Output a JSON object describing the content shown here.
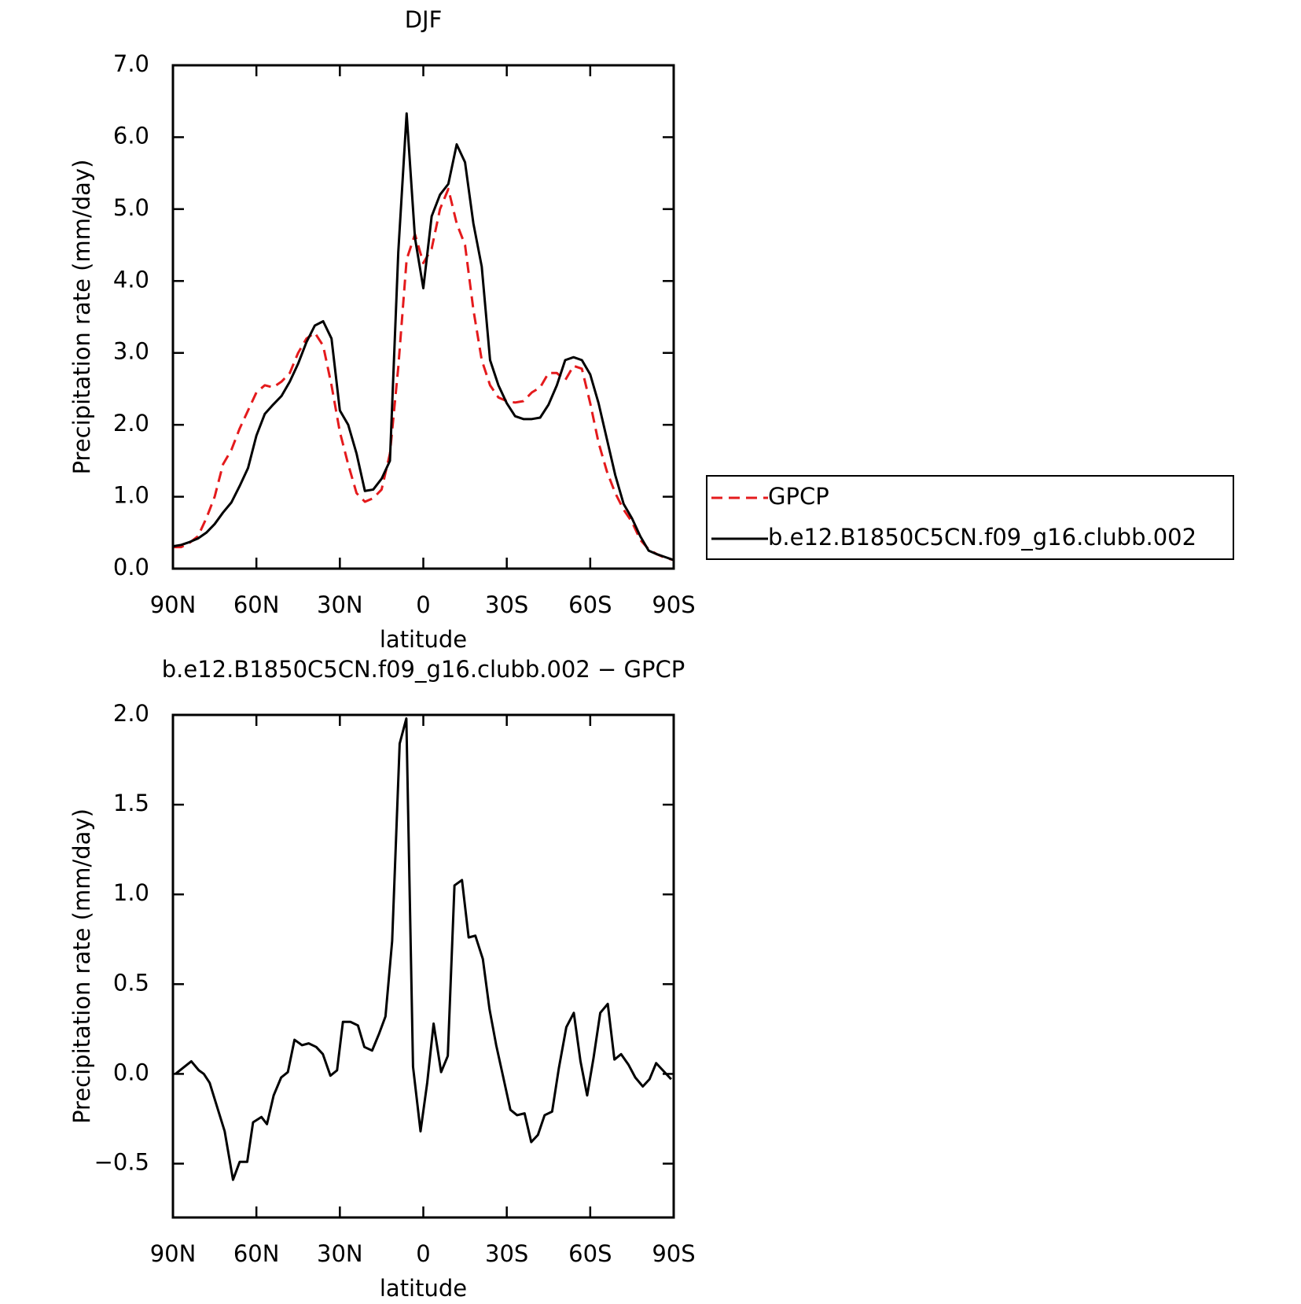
{
  "chart_data": [
    {
      "type": "line",
      "title": "DJF",
      "xlabel": "latitude",
      "ylabel": "Precipitation rate (mm/day)",
      "xlim": [
        90,
        -90
      ],
      "ylim": [
        0,
        7
      ],
      "xticks": [
        {
          "value": 90,
          "label": "90N"
        },
        {
          "value": 60,
          "label": "60N"
        },
        {
          "value": 30,
          "label": "30N"
        },
        0,
        {
          "value": -30,
          "label": "30S"
        },
        {
          "value": -60,
          "label": "60S"
        },
        {
          "value": -90,
          "label": "90S"
        }
      ],
      "yticks": [
        {
          "value": 0,
          "label": "0.0"
        },
        {
          "value": 1,
          "label": "1.0"
        },
        {
          "value": 2,
          "label": "2.0"
        },
        {
          "value": 3,
          "label": "3.0"
        },
        {
          "value": 4,
          "label": "4.0"
        },
        {
          "value": 5,
          "label": "5.0"
        },
        {
          "value": 6,
          "label": "6.0"
        },
        {
          "value": 7,
          "label": "7.0"
        }
      ],
      "legend": "right",
      "x": [
        90,
        87,
        84,
        81,
        78,
        75,
        72,
        69,
        66,
        63,
        60,
        57,
        54,
        51,
        48,
        45,
        42,
        39,
        36,
        33,
        30,
        27,
        24,
        21,
        18,
        15,
        12,
        9,
        6,
        3,
        0,
        -3,
        -6,
        -9,
        -12,
        -15,
        -18,
        -21,
        -24,
        -27,
        -30,
        -33,
        -36,
        -39,
        -42,
        -45,
        -48,
        -51,
        -54,
        -57,
        -60,
        -63,
        -66,
        -69,
        -72,
        -75,
        -78,
        -81,
        -84,
        -87,
        -90
      ],
      "series": [
        {
          "name": "GPCP",
          "color": "#e41a1c",
          "dash": true,
          "values": [
            0.3,
            0.3,
            0.36,
            0.45,
            0.7,
            1.0,
            1.45,
            1.65,
            1.95,
            2.2,
            2.45,
            2.55,
            2.52,
            2.6,
            2.72,
            3.0,
            3.2,
            3.28,
            3.1,
            2.55,
            1.9,
            1.45,
            1.05,
            0.93,
            0.98,
            1.1,
            1.6,
            2.8,
            4.3,
            4.65,
            4.25,
            4.45,
            5.0,
            5.28,
            4.8,
            4.5,
            3.6,
            2.9,
            2.55,
            2.38,
            2.33,
            2.31,
            2.33,
            2.45,
            2.52,
            2.72,
            2.72,
            2.62,
            2.82,
            2.78,
            2.3,
            1.75,
            1.35,
            1.05,
            0.82,
            0.65,
            0.4,
            0.27,
            0.2,
            0.15,
            0.12
          ]
        },
        {
          "name": "b.e12.B1850C5CN.f09_g16.clubb.002",
          "color": "#000000",
          "dash": false,
          "values": [
            0.31,
            0.33,
            0.37,
            0.42,
            0.5,
            0.62,
            0.78,
            0.92,
            1.15,
            1.4,
            1.85,
            2.15,
            2.28,
            2.4,
            2.6,
            2.85,
            3.15,
            3.38,
            3.44,
            3.2,
            2.2,
            2.0,
            1.6,
            1.08,
            1.1,
            1.25,
            1.5,
            4.4,
            6.33,
            4.6,
            3.9,
            4.9,
            5.2,
            5.35,
            5.9,
            5.65,
            4.8,
            4.2,
            2.9,
            2.55,
            2.3,
            2.12,
            2.08,
            2.08,
            2.1,
            2.28,
            2.55,
            2.9,
            2.94,
            2.9,
            2.7,
            2.3,
            1.8,
            1.3,
            0.9,
            0.7,
            0.45,
            0.25,
            0.2,
            0.16,
            0.12
          ]
        }
      ]
    },
    {
      "type": "line",
      "title": "b.e12.B1850C5CN.f09_g16.clubb.002 − GPCP",
      "xlabel": "latitude",
      "ylabel": "Precipitation rate (mm/day)",
      "xlim": [
        90,
        -90
      ],
      "ylim": [
        -0.8,
        2.0
      ],
      "xticks": [
        {
          "value": 90,
          "label": "90N"
        },
        {
          "value": 60,
          "label": "60N"
        },
        {
          "value": 30,
          "label": "30N"
        },
        0,
        {
          "value": -30,
          "label": "30S"
        },
        {
          "value": -60,
          "label": "60S"
        },
        {
          "value": -90,
          "label": "90S"
        }
      ],
      "yticks": [
        {
          "value": -0.5,
          "label": "−0.5"
        },
        {
          "value": 0,
          "label": "0.0"
        },
        0.5,
        {
          "value": 1,
          "label": "1.0"
        },
        1.5,
        {
          "value": 2,
          "label": "2.0"
        }
      ],
      "x": [
        89.1,
        83.4,
        80.7,
        78.9,
        76.8,
        71.4,
        68.4,
        66.0,
        63.3,
        61.2,
        58.2,
        56.2,
        53.8,
        51.1,
        48.7,
        46.3,
        43.6,
        41.2,
        38.5,
        36.1,
        33.4,
        31.0,
        28.9,
        26.2,
        23.5,
        21.2,
        18.4,
        16.0,
        13.6,
        11.2,
        8.5,
        6.1,
        3.7,
        1.0,
        -1.4,
        -3.7,
        -6.4,
        -8.8,
        -11.2,
        -13.9,
        -16.3,
        -18.7,
        -21.4,
        -23.8,
        -26.2,
        -28.9,
        -31.3,
        -33.7,
        -36.4,
        -38.8,
        -41.2,
        -43.6,
        -46.3,
        -48.7,
        -51.4,
        -54.1,
        -56.5,
        -58.9,
        -61.2,
        -63.6,
        -66.3,
        -68.7,
        -71.1,
        -73.8,
        -76.2,
        -78.9,
        -81.3,
        -83.7,
        -89.1
      ],
      "series": [
        {
          "color": "#000000",
          "values": [
            0.0,
            0.07,
            0.02,
            0.0,
            -0.05,
            -0.32,
            -0.59,
            -0.49,
            -0.49,
            -0.27,
            -0.24,
            -0.28,
            -0.12,
            -0.02,
            0.01,
            0.19,
            0.16,
            0.17,
            0.15,
            0.11,
            -0.01,
            0.02,
            0.29,
            0.29,
            0.27,
            0.15,
            0.13,
            0.22,
            0.32,
            0.74,
            1.84,
            1.98,
            0.04,
            -0.32,
            -0.05,
            0.28,
            0.01,
            0.1,
            1.05,
            1.08,
            0.76,
            0.77,
            0.64,
            0.36,
            0.16,
            -0.03,
            -0.2,
            -0.23,
            -0.22,
            -0.38,
            -0.34,
            -0.23,
            -0.21,
            0.03,
            0.26,
            0.34,
            0.07,
            -0.12,
            0.09,
            0.34,
            0.39,
            0.08,
            0.11,
            0.05,
            -0.02,
            -0.07,
            -0.03,
            0.06,
            -0.03
          ]
        }
      ]
    }
  ]
}
